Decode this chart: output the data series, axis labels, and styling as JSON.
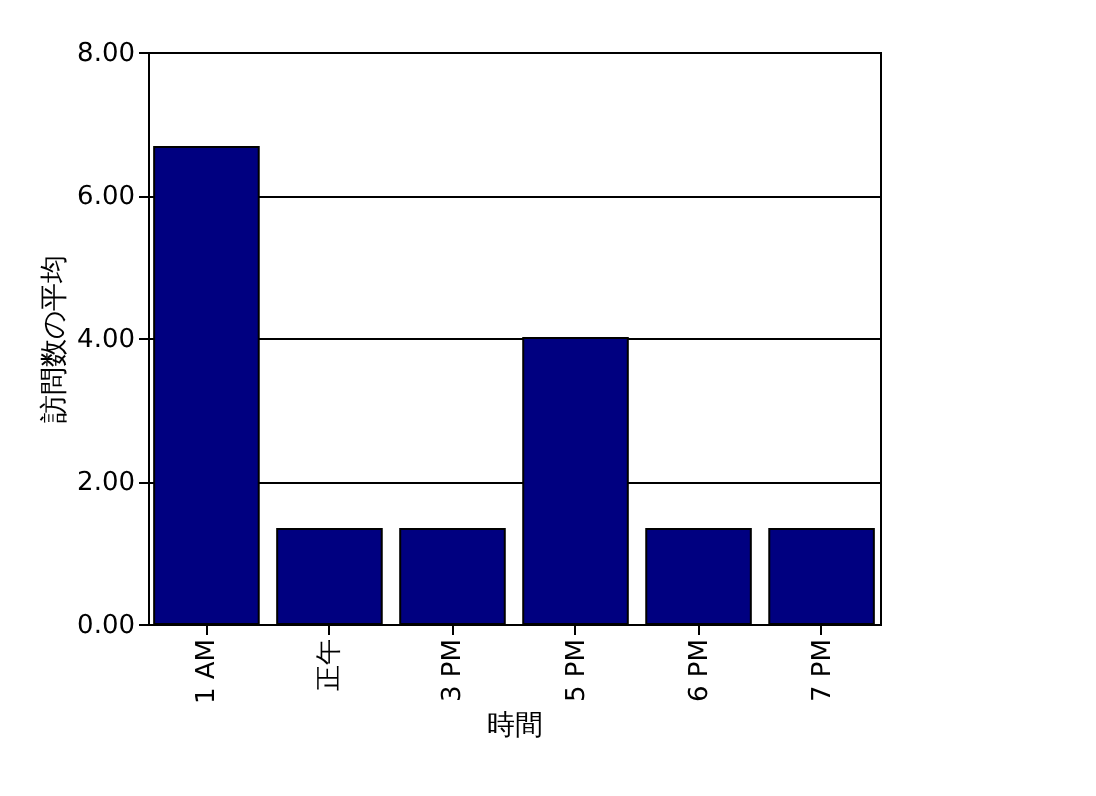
{
  "chart_data": {
    "type": "bar",
    "xlabel": "時間",
    "ylabel": "訪問数の平均",
    "categories": [
      "1 AM",
      "正午",
      "3 PM",
      "5 PM",
      "6 PM",
      "7 PM"
    ],
    "values": [
      6.67,
      1.33,
      1.33,
      4,
      1.33,
      1.33
    ],
    "color": "#000080",
    "ylim": [
      0,
      8
    ],
    "yticks": [
      {
        "value": 0,
        "label": "0.00"
      },
      {
        "value": 2,
        "label": "2.00"
      },
      {
        "value": 4,
        "label": "4.00"
      },
      {
        "value": 6,
        "label": "6.00"
      },
      {
        "value": 8,
        "label": "8.00"
      }
    ],
    "grid": "y"
  }
}
